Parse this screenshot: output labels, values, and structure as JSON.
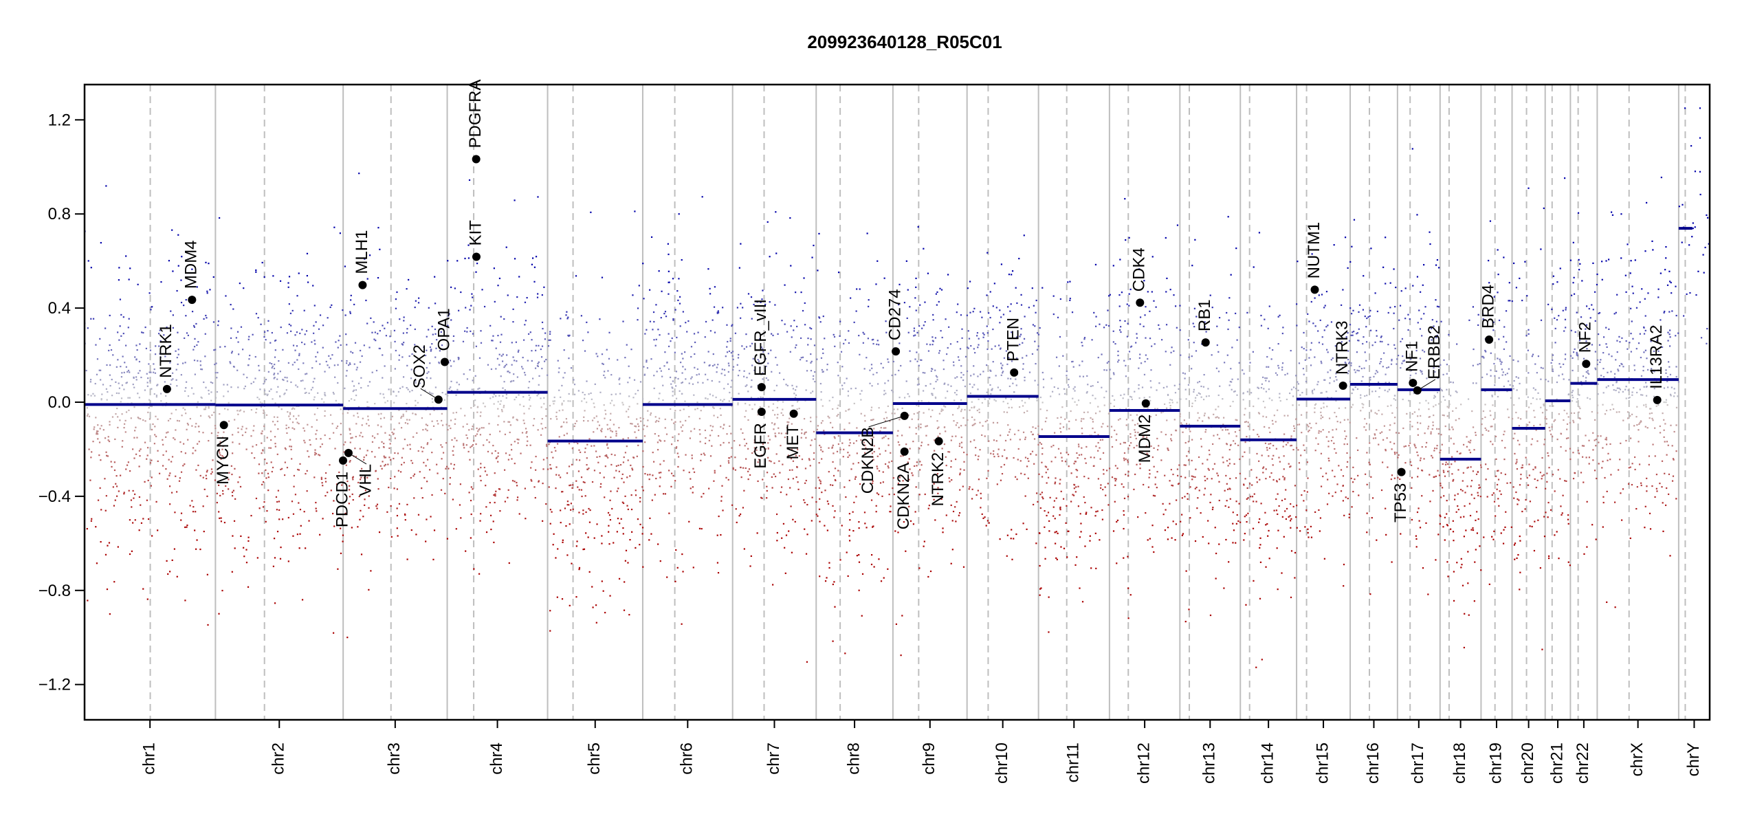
{
  "chart_data": {
    "type": "scatter",
    "title": "209923640128_R05C01",
    "xlabel": "",
    "ylabel": "",
    "ylim": [
      -1.35,
      1.35
    ],
    "yticks": [
      -1.2,
      -0.8,
      -0.4,
      0.0,
      0.4,
      0.8,
      1.2
    ],
    "ytick_labels": [
      "-1.2",
      "-0.8",
      "-0.4",
      "0.0",
      "0.4",
      "0.8",
      "1.2"
    ],
    "grid": false,
    "legend": "none",
    "colors": {
      "gain": "#0000aa",
      "loss": "#aa0000",
      "neutral": "#c8c8c8",
      "segment": "#00008b",
      "gene_point": "#000000",
      "chrom_border": "#bebebe",
      "centromere": "#bebebe"
    },
    "chromosomes": [
      {
        "name": "chr1",
        "length_mb": 249,
        "centromere_mb": 125.0,
        "segment_mean": -0.01
      },
      {
        "name": "chr2",
        "length_mb": 243,
        "centromere_mb": 93.3,
        "segment_mean": -0.012
      },
      {
        "name": "chr3",
        "length_mb": 198,
        "centromere_mb": 91.0,
        "segment_mean": -0.027
      },
      {
        "name": "chr4",
        "length_mb": 191,
        "centromere_mb": 50.4,
        "segment_mean": 0.042
      },
      {
        "name": "chr5",
        "length_mb": 181,
        "centromere_mb": 48.4,
        "segment_mean": -0.165
      },
      {
        "name": "chr6",
        "length_mb": 171,
        "centromere_mb": 61.0,
        "segment_mean": -0.01
      },
      {
        "name": "chr7",
        "length_mb": 159,
        "centromere_mb": 59.9,
        "segment_mean": 0.012
      },
      {
        "name": "chr8",
        "length_mb": 146,
        "centromere_mb": 45.6,
        "segment_mean": -0.13
      },
      {
        "name": "chr9",
        "length_mb": 141,
        "centromere_mb": 49.0,
        "segment_mean": -0.006
      },
      {
        "name": "chr10",
        "length_mb": 136,
        "centromere_mb": 40.2,
        "segment_mean": 0.025
      },
      {
        "name": "chr11",
        "length_mb": 135,
        "centromere_mb": 53.7,
        "segment_mean": -0.146
      },
      {
        "name": "chr12",
        "length_mb": 134,
        "centromere_mb": 35.8,
        "segment_mean": -0.035
      },
      {
        "name": "chr13",
        "length_mb": 115,
        "centromere_mb": 17.9,
        "segment_mean": -0.102
      },
      {
        "name": "chr14",
        "length_mb": 107,
        "centromere_mb": 17.6,
        "segment_mean": -0.16
      },
      {
        "name": "chr15",
        "length_mb": 102,
        "centromere_mb": 19.0,
        "segment_mean": 0.013
      },
      {
        "name": "chr16",
        "length_mb": 90,
        "centromere_mb": 36.6,
        "segment_mean": 0.076
      },
      {
        "name": "chr17",
        "length_mb": 81,
        "centromere_mb": 24.0,
        "segment_mean": 0.053
      },
      {
        "name": "chr18",
        "length_mb": 78,
        "centromere_mb": 17.2,
        "segment_mean": -0.242
      },
      {
        "name": "chr19",
        "length_mb": 59,
        "centromere_mb": 26.5,
        "segment_mean": 0.053
      },
      {
        "name": "chr20",
        "length_mb": 63,
        "centromere_mb": 27.5,
        "segment_mean": -0.111
      },
      {
        "name": "chr21",
        "length_mb": 48,
        "centromere_mb": 13.2,
        "segment_mean": 0.006
      },
      {
        "name": "chr22",
        "length_mb": 51,
        "centromere_mb": 14.7,
        "segment_mean": 0.08
      },
      {
        "name": "chrX",
        "length_mb": 155,
        "centromere_mb": 60.6,
        "segment_mean": 0.096
      },
      {
        "name": "chrY",
        "length_mb": 59,
        "centromere_mb": 12.5,
        "segment_mean": 0.739,
        "segment_range_mb": [
          0,
          26
        ]
      }
    ],
    "genes": [
      {
        "name": "NTRK1",
        "chr": "chr1",
        "pos_mb": 156.8,
        "value": 0.056
      },
      {
        "name": "MDM4",
        "chr": "chr1",
        "pos_mb": 204.5,
        "value": 0.435
      },
      {
        "name": "MYCN",
        "chr": "chr2",
        "pos_mb": 16.1,
        "value": -0.097
      },
      {
        "name": "PDCD1",
        "chr": "chr2",
        "pos_mb": 242.8,
        "value": -0.248
      },
      {
        "name": "VHL",
        "chr": "chr3",
        "pos_mb": 10.2,
        "value": -0.216
      },
      {
        "name": "MLH1",
        "chr": "chr3",
        "pos_mb": 37.0,
        "value": 0.498
      },
      {
        "name": "SOX2",
        "chr": "chr3",
        "pos_mb": 181.4,
        "value": 0.011
      },
      {
        "name": "OPA1",
        "chr": "chr3",
        "pos_mb": 193.3,
        "value": 0.171
      },
      {
        "name": "KIT",
        "chr": "chr4",
        "pos_mb": 55.5,
        "value": 0.618
      },
      {
        "name": "PDGFRA",
        "chr": "chr4",
        "pos_mb": 55.1,
        "value": 1.033
      },
      {
        "name": "EGFR_vIII",
        "chr": "chr7",
        "pos_mb": 55.2,
        "value": 0.064
      },
      {
        "name": "EGFR",
        "chr": "chr7",
        "pos_mb": 55.1,
        "value": -0.041
      },
      {
        "name": "MET",
        "chr": "chr7",
        "pos_mb": 116.3,
        "value": -0.049
      },
      {
        "name": "CD274",
        "chr": "chr9",
        "pos_mb": 5.5,
        "value": 0.216
      },
      {
        "name": "CDKN2A",
        "chr": "chr9",
        "pos_mb": 21.97,
        "value": -0.21
      },
      {
        "name": "CDKN2B",
        "chr": "chr9",
        "pos_mb": 22.0,
        "value": -0.058
      },
      {
        "name": "NTRK2",
        "chr": "chr9",
        "pos_mb": 87.3,
        "value": -0.166
      },
      {
        "name": "PTEN",
        "chr": "chr10",
        "pos_mb": 89.6,
        "value": 0.126
      },
      {
        "name": "CDK4",
        "chr": "chr12",
        "pos_mb": 58.1,
        "value": 0.423
      },
      {
        "name": "MDM2",
        "chr": "chr12",
        "pos_mb": 69.2,
        "value": -0.005
      },
      {
        "name": "RB1",
        "chr": "chr13",
        "pos_mb": 48.9,
        "value": 0.254
      },
      {
        "name": "NUTM1",
        "chr": "chr15",
        "pos_mb": 34.6,
        "value": 0.478
      },
      {
        "name": "NTRK3",
        "chr": "chr15",
        "pos_mb": 88.4,
        "value": 0.07
      },
      {
        "name": "NF1",
        "chr": "chr17",
        "pos_mb": 29.4,
        "value": 0.082
      },
      {
        "name": "ERBB2",
        "chr": "chr17",
        "pos_mb": 37.8,
        "value": 0.05
      },
      {
        "name": "TP53",
        "chr": "chr17",
        "pos_mb": 7.5,
        "value": -0.297
      },
      {
        "name": "BRD4",
        "chr": "chr19",
        "pos_mb": 15.3,
        "value": 0.266
      },
      {
        "name": "NF2",
        "chr": "chr22",
        "pos_mb": 30.0,
        "value": 0.163
      },
      {
        "name": "IL13RA2",
        "chr": "chrX",
        "pos_mb": 114.2,
        "value": 0.009
      }
    ]
  }
}
